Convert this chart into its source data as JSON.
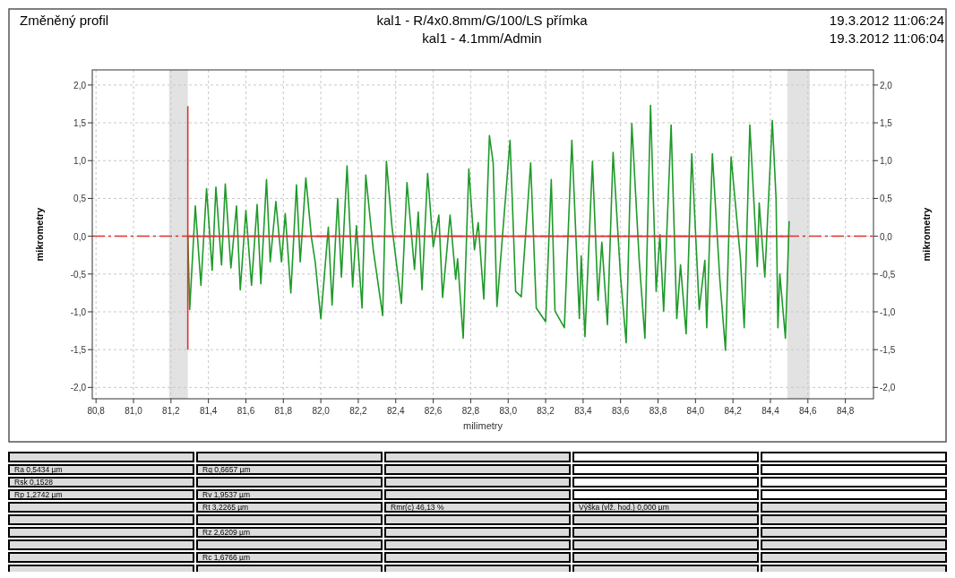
{
  "chart_data": {
    "type": "line",
    "title": "Změněný profil",
    "subtitle": "kal1 - R/4x0.8mm/G/100/LS přímka",
    "xlabel": "milimetry",
    "ylabel": "mikrometry",
    "y2label": "mikrometry",
    "annotations": [
      "kal1 - 4.1mm/Admin",
      "19.3.2012 11:06:24",
      "19.3.2012 11:06:04",
      "Ra 0,5434 µm",
      "Rsk 0,1528",
      "Rp 1,2742 µm",
      "Rq 0,6657 µm",
      "Rv 1,9537 µm",
      "Rt 3,2265 µm",
      "Rmr(c) 46,13 %",
      "Výška (vlž. hod.) 0,000 µm",
      "Rz 2,6209 µm",
      "Rc 1,6766 µm"
    ],
    "xlim": [
      80.78,
      84.95
    ],
    "ylim": [
      -2.15,
      2.2
    ],
    "y2lim": [
      -2.15,
      2.2
    ],
    "xticks": [
      {
        "value": 80.8,
        "label": "80,8"
      },
      {
        "value": 81.0,
        "label": "81,0"
      },
      {
        "value": 81.2,
        "label": "81,2"
      },
      {
        "value": 81.4,
        "label": "81,4"
      },
      {
        "value": 81.6,
        "label": "81,6"
      },
      {
        "value": 81.8,
        "label": "81,8"
      },
      {
        "value": 82.0,
        "label": "82,0"
      },
      {
        "value": 82.2,
        "label": "82,2"
      },
      {
        "value": 82.4,
        "label": "82,4"
      },
      {
        "value": 82.6,
        "label": "82,6"
      },
      {
        "value": 82.8,
        "label": "82,8"
      },
      {
        "value": 83.0,
        "label": "83,0"
      },
      {
        "value": 83.2,
        "label": "83,2"
      },
      {
        "value": 83.4,
        "label": "83,4"
      },
      {
        "value": 83.6,
        "label": "83,6"
      },
      {
        "value": 83.8,
        "label": "83,8"
      },
      {
        "value": 84.0,
        "label": "84,0"
      },
      {
        "value": 84.2,
        "label": "84,2"
      },
      {
        "value": 84.4,
        "label": "84,4"
      },
      {
        "value": 84.6,
        "label": "84,6"
      },
      {
        "value": 84.8,
        "label": "84,8"
      }
    ],
    "yticks": [
      {
        "value": 2,
        "label": "2,0"
      },
      {
        "value": 1.5,
        "label": "1,5"
      },
      {
        "value": 1,
        "label": "1,0"
      },
      {
        "value": 0.5,
        "label": "0,5"
      },
      {
        "value": 0,
        "label": "0,0"
      },
      {
        "value": -0.5,
        "label": "-0,5"
      },
      {
        "value": -1,
        "label": "-1,0"
      },
      {
        "value": -1.5,
        "label": "-1,5"
      },
      {
        "value": -2,
        "label": "-2,0"
      }
    ],
    "y2ticks": [
      {
        "value": 2,
        "label": "2,0"
      },
      {
        "value": 1.5,
        "label": "1,5"
      },
      {
        "value": 1,
        "label": "1,0"
      },
      {
        "value": 0.5,
        "label": "0,5"
      },
      {
        "value": 0,
        "label": "0,0"
      },
      {
        "value": -0.5,
        "label": "-0,5"
      },
      {
        "value": -1,
        "label": "-1,0"
      },
      {
        "value": -1.5,
        "label": "-1,5"
      },
      {
        "value": -2,
        "label": "-2,0"
      }
    ],
    "grid": true,
    "bands": [
      {
        "axis": "x",
        "from": 81.19,
        "to": 81.29,
        "color": "#e2e2e2"
      },
      {
        "axis": "x",
        "from": 84.49,
        "to": 84.61,
        "color": "#e2e2e2"
      }
    ],
    "ref_lines": [
      {
        "axis": "y",
        "value": 0,
        "color": "#e03030",
        "line_style": "dashed"
      }
    ],
    "series": [
      {
        "color": "#1f9a2a",
        "x": [
          81.29,
          81.3,
          81.33,
          81.36,
          81.39,
          81.42,
          81.44,
          81.47,
          81.49,
          81.52,
          81.55,
          81.57,
          81.6,
          81.63,
          81.66,
          81.68,
          81.71,
          81.73,
          81.76,
          81.79,
          81.81,
          81.84,
          81.87,
          81.89,
          81.92,
          81.95,
          81.97,
          82.0,
          82.04,
          82.06,
          82.09,
          82.11,
          82.14,
          82.17,
          82.19,
          82.22,
          82.24,
          82.28,
          82.33,
          82.35,
          82.38,
          82.43,
          82.46,
          82.5,
          82.52,
          82.54,
          82.57,
          82.6,
          82.63,
          82.65,
          82.69,
          82.72,
          82.73,
          82.76,
          82.79,
          82.82,
          82.84,
          82.87,
          82.9,
          82.92,
          82.94,
          83.01,
          83.04,
          83.07,
          83.12,
          83.15,
          83.2,
          83.23,
          83.25,
          83.3,
          83.34,
          83.38,
          83.39,
          83.41,
          83.45,
          83.48,
          83.5,
          83.53,
          83.56,
          83.6,
          83.63,
          83.66,
          83.7,
          83.73,
          83.76,
          83.79,
          83.81,
          83.83,
          83.87,
          83.9,
          83.92,
          83.95,
          83.98,
          84.02,
          84.05,
          84.06,
          84.09,
          84.13,
          84.16,
          84.19,
          84.24,
          84.26,
          84.29,
          84.33,
          84.34,
          84.37,
          84.41,
          84.43,
          84.44,
          84.45,
          84.48,
          84.5
        ],
        "values": [
          0,
          -0.97,
          0.4,
          -0.65,
          0.63,
          -0.45,
          0.65,
          -0.38,
          0.69,
          -0.42,
          0.4,
          -0.71,
          0.34,
          -0.65,
          0.42,
          -0.63,
          0.75,
          -0.34,
          0.46,
          -0.34,
          0.3,
          -0.75,
          0.68,
          -0.34,
          0.77,
          -0.02,
          -0.34,
          -1.09,
          0.12,
          -0.91,
          0.5,
          -0.54,
          0.93,
          -0.67,
          0.14,
          -0.95,
          0.81,
          -0.18,
          -1.05,
          0.99,
          0.12,
          -0.89,
          0.71,
          -0.44,
          0.32,
          -0.71,
          0.83,
          -0.14,
          0.28,
          -0.81,
          0.28,
          -0.57,
          -0.3,
          -1.35,
          0.89,
          -0.18,
          0.18,
          -0.83,
          1.33,
          0.97,
          -0.93,
          1.27,
          -0.73,
          -0.8,
          0.97,
          -0.95,
          -1.13,
          0.75,
          -0.99,
          -1.21,
          1.27,
          -1.09,
          -0.26,
          -1.33,
          0.99,
          -0.85,
          -0.08,
          -1.17,
          1.11,
          -0.54,
          -1.41,
          1.49,
          -0.34,
          -1.35,
          1.73,
          -0.73,
          0.02,
          -0.99,
          1.47,
          -1.09,
          -0.38,
          -1.29,
          1.09,
          -0.97,
          -0.32,
          -1.21,
          1.09,
          -0.58,
          -1.51,
          1.05,
          -0.3,
          -1.21,
          1.47,
          -0.4,
          0.44,
          -0.54,
          1.53,
          0.5,
          -1.21,
          -0.5,
          -1.35,
          0.2
        ]
      },
      {
        "color": "#e03030",
        "x": [
          81.29,
          81.29
        ],
        "values": [
          -1.5,
          1.72
        ]
      },
      {
        "color": "#e03030",
        "x": [
          81.29,
          84.5
        ],
        "values": [
          0,
          0
        ]
      }
    ]
  }
}
